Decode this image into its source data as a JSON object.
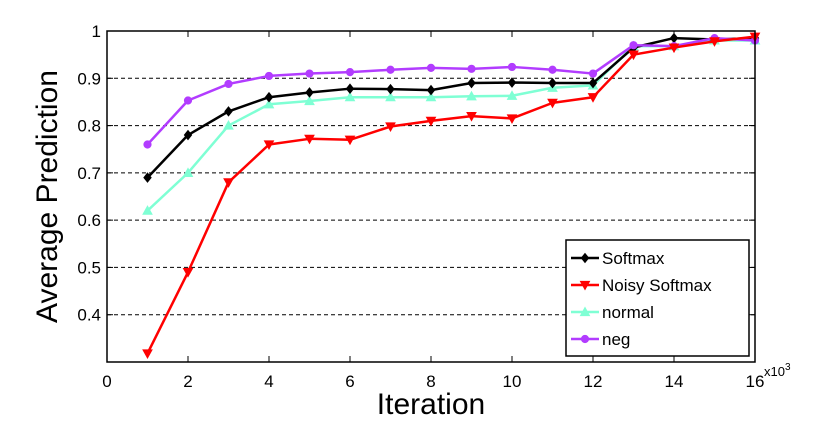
{
  "chart_data": {
    "type": "line",
    "title": "",
    "xlabel": "Iteration",
    "ylabel": "Average Prediction",
    "x_multiplier_label": "x10",
    "x_multiplier_exp": "3",
    "xlim": [
      0,
      16
    ],
    "ylim": [
      0.3,
      1.0
    ],
    "x_ticks": [
      0,
      2,
      4,
      6,
      8,
      10,
      12,
      14,
      16
    ],
    "y_ticks": [
      0.4,
      0.5,
      0.6,
      0.7,
      0.8,
      0.9,
      1.0
    ],
    "y_tick_labels": [
      "0.4",
      "0.5",
      "0.6",
      "0.7",
      "0.8",
      "0.9",
      "1"
    ],
    "grid": "horizontal-dashed",
    "legend_position": "bottom-right",
    "x": [
      1,
      2,
      3,
      4,
      5,
      6,
      7,
      8,
      9,
      10,
      11,
      12,
      13,
      14,
      15,
      16
    ],
    "series": [
      {
        "name": "Softmax",
        "color": "#000000",
        "marker": "diamond",
        "values": [
          0.69,
          0.78,
          0.83,
          0.86,
          0.87,
          0.878,
          0.877,
          0.875,
          0.89,
          0.891,
          0.89,
          0.89,
          0.965,
          0.985,
          0.982,
          0.985
        ]
      },
      {
        "name": "Noisy Softmax",
        "color": "#ff0000",
        "marker": "triangle-down",
        "values": [
          0.318,
          0.49,
          0.68,
          0.76,
          0.772,
          0.77,
          0.798,
          0.81,
          0.82,
          0.815,
          0.848,
          0.86,
          0.95,
          0.965,
          0.978,
          0.988
        ]
      },
      {
        "name": "normal",
        "color": "#7fffd4",
        "marker": "triangle-up",
        "values": [
          0.62,
          0.7,
          0.8,
          0.845,
          0.852,
          0.86,
          0.86,
          0.86,
          0.862,
          0.863,
          0.88,
          0.885,
          0.968,
          0.968,
          0.98,
          0.98
        ]
      },
      {
        "name": "neg",
        "color": "#b23cff",
        "marker": "circle",
        "values": [
          0.76,
          0.853,
          0.888,
          0.905,
          0.91,
          0.913,
          0.918,
          0.922,
          0.92,
          0.924,
          0.918,
          0.91,
          0.97,
          0.968,
          0.985,
          0.98
        ]
      }
    ]
  }
}
